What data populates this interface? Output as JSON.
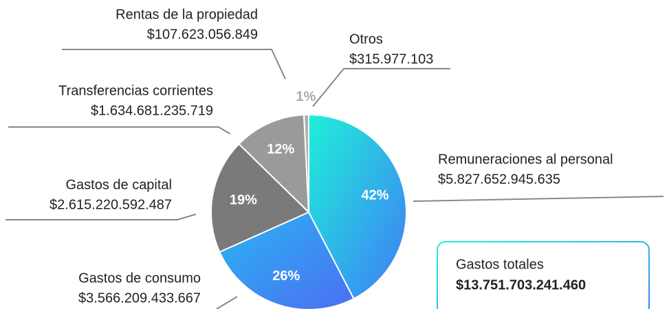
{
  "chart_data": {
    "type": "pie",
    "categories": [
      "Remuneraciones al personal",
      "Gastos de consumo",
      "Gastos de capital",
      "Transferencias corrientes",
      "Rentas de la propiedad",
      "Otros"
    ],
    "amount_labels": [
      "$5.827.652.945.635",
      "$3.566.209.433.667",
      "$2.615.220.592.487",
      "$1.634.681.235.719",
      "$107.623.056.849",
      "$315.977.103"
    ],
    "values": [
      42.37,
      25.93,
      19.02,
      11.89,
      0.78,
      0.0023
    ],
    "value_labels": [
      "42%",
      "26%",
      "19%",
      "12%",
      "1%",
      null
    ],
    "colors": [
      [
        "#1ff0d8",
        "#3f7cf6"
      ],
      [
        "#29b6f2",
        "#4c6ef2"
      ],
      [
        "#7a7a7a",
        "#7a7a7a"
      ],
      [
        "#9a9a9a",
        "#9a9a9a"
      ],
      [
        "#b0b0b0",
        "#b0b0b0"
      ],
      [
        "#cfcfcf",
        "#cfcfcf"
      ]
    ],
    "total_label": "Gastos totales",
    "total": "$13.751.703.241.460"
  }
}
